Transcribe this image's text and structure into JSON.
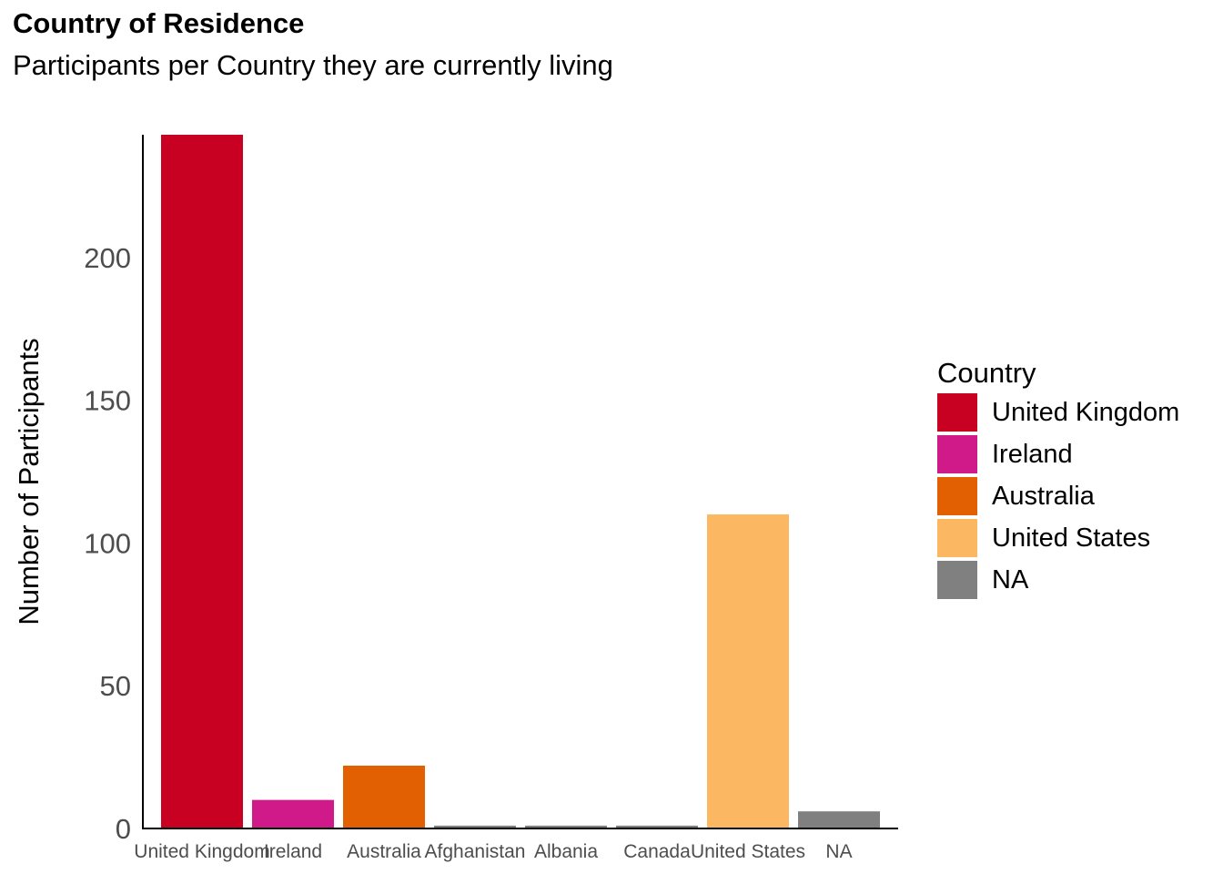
{
  "chart_data": {
    "type": "bar",
    "title": "Country of Residence",
    "subtitle": "Participants per Country they are currently living",
    "xlabel": "",
    "ylabel": "Number of Participants",
    "categories": [
      "United Kingdom",
      "Ireland",
      "Australia",
      "Afghanistan",
      "Albania",
      "Canada",
      "United States",
      "NA"
    ],
    "values": [
      243,
      10,
      22,
      1,
      1,
      1,
      110,
      6
    ],
    "colors": [
      "#C80021",
      "#D11A8A",
      "#E36002",
      "#808080",
      "#808080",
      "#808080",
      "#FBB762",
      "#808080"
    ],
    "ylim": [
      0,
      243
    ],
    "yticks": [
      0,
      50,
      100,
      150,
      200
    ],
    "grid": false,
    "legend": {
      "title": "Country",
      "position": "right",
      "items": [
        {
          "label": "United Kingdom",
          "color": "#C80021"
        },
        {
          "label": "Ireland",
          "color": "#D11A8A"
        },
        {
          "label": "Australia",
          "color": "#E36002"
        },
        {
          "label": "United States",
          "color": "#FBB762"
        },
        {
          "label": "NA",
          "color": "#808080"
        }
      ]
    }
  }
}
